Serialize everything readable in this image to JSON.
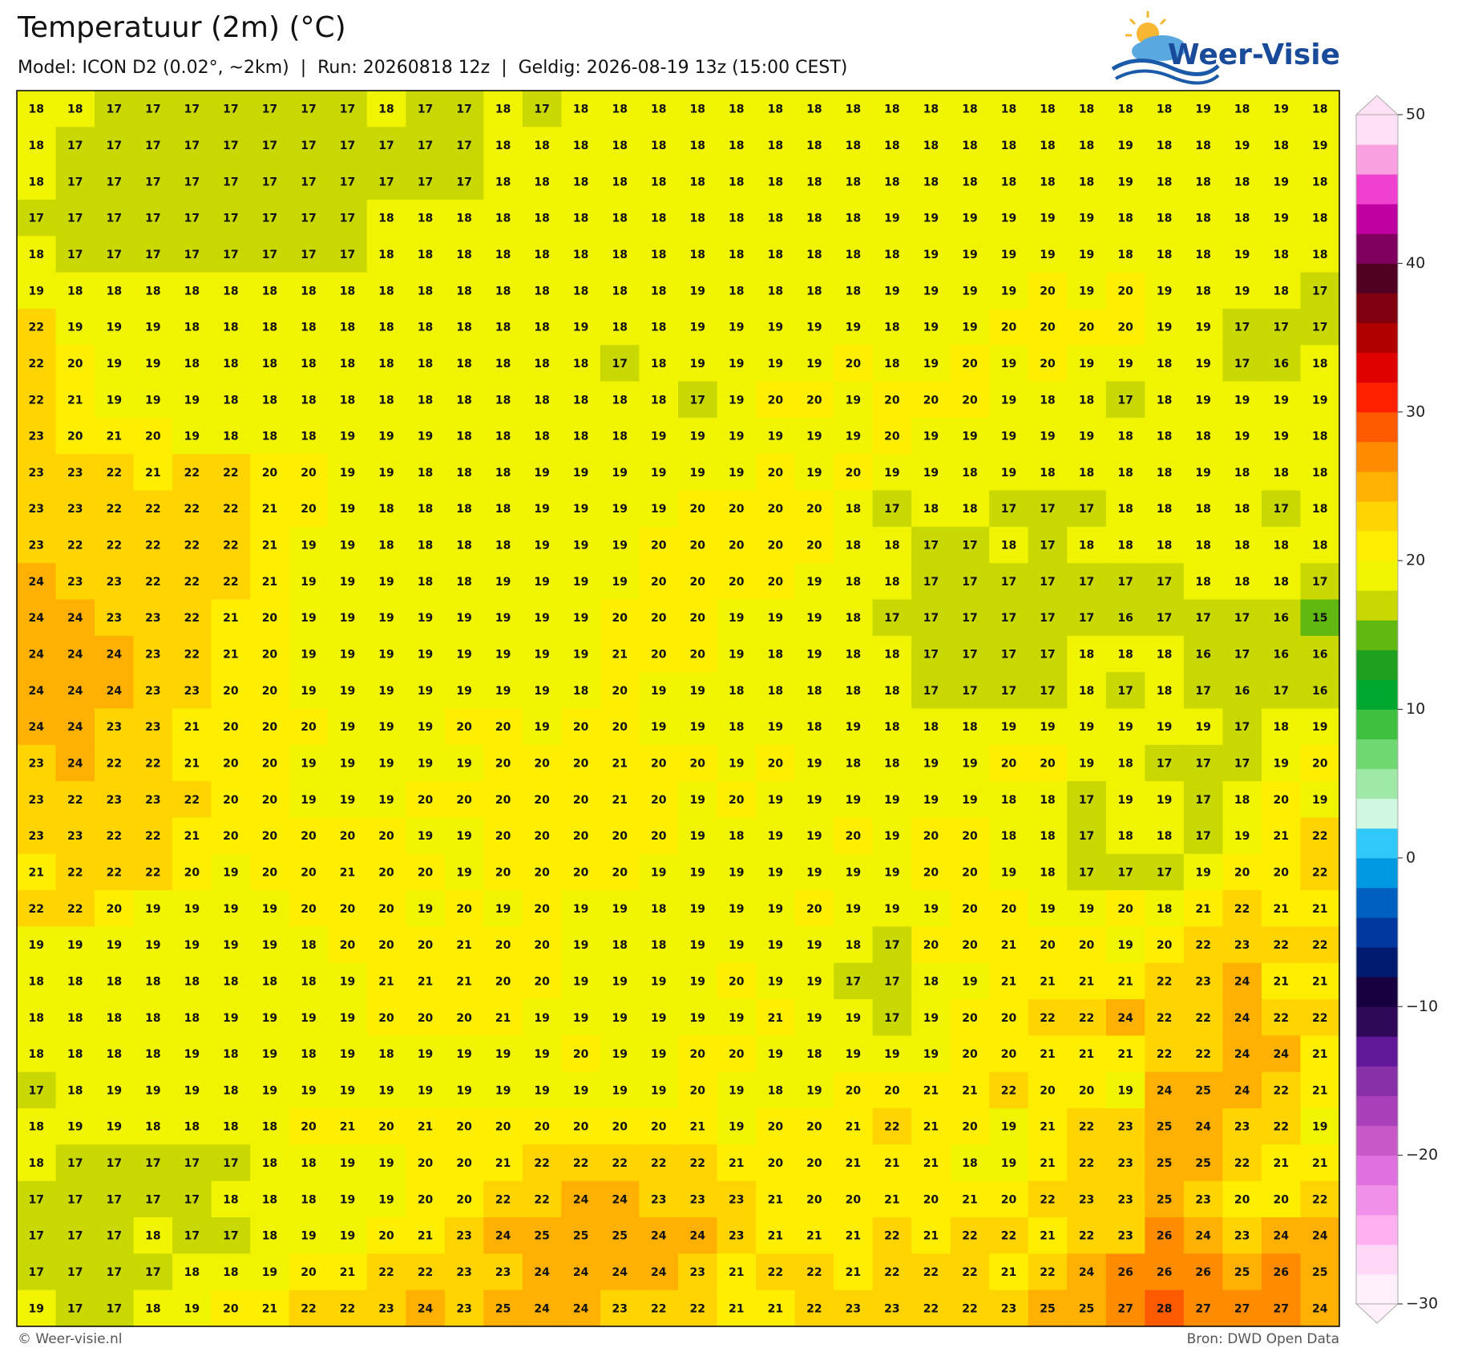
{
  "header": {
    "title": "Temperatuur (2m) (°C)",
    "subtitle": "Model: ICON D2 (0.02°, ~2km)  |  Run: 20260818 12z  |  Geldig: 2026-08-19 13z (15:00 CEST)"
  },
  "logo": "Weer-Visie",
  "map": {
    "grid": [
      [
        18,
        18,
        17,
        17,
        17,
        17,
        17,
        17,
        17,
        18,
        17,
        17,
        18,
        17,
        18,
        18,
        18,
        18,
        18,
        18,
        18,
        18,
        18,
        18,
        18,
        18,
        18,
        18,
        18,
        18,
        19,
        18,
        19,
        18
      ],
      [
        18,
        17,
        17,
        17,
        17,
        17,
        17,
        17,
        17,
        17,
        17,
        17,
        18,
        18,
        18,
        18,
        18,
        18,
        18,
        18,
        18,
        18,
        18,
        18,
        18,
        18,
        18,
        18,
        19,
        18,
        18,
        19,
        18,
        19
      ],
      [
        18,
        17,
        17,
        17,
        17,
        17,
        17,
        17,
        17,
        17,
        17,
        17,
        18,
        18,
        18,
        18,
        18,
        18,
        18,
        18,
        18,
        18,
        18,
        18,
        18,
        18,
        18,
        18,
        19,
        18,
        18,
        18,
        19,
        18
      ],
      [
        17,
        17,
        17,
        17,
        17,
        17,
        17,
        17,
        17,
        18,
        18,
        18,
        18,
        18,
        18,
        18,
        18,
        18,
        18,
        18,
        18,
        18,
        19,
        19,
        19,
        19,
        19,
        19,
        18,
        18,
        18,
        18,
        19,
        18
      ],
      [
        18,
        17,
        17,
        17,
        17,
        17,
        17,
        17,
        17,
        18,
        18,
        18,
        18,
        18,
        18,
        18,
        18,
        18,
        18,
        18,
        18,
        18,
        18,
        19,
        19,
        19,
        19,
        19,
        18,
        18,
        18,
        19,
        18,
        18
      ],
      [
        19,
        18,
        18,
        18,
        18,
        18,
        18,
        18,
        18,
        18,
        18,
        18,
        18,
        18,
        18,
        18,
        18,
        19,
        18,
        18,
        18,
        18,
        19,
        19,
        19,
        19,
        20,
        19,
        20,
        19,
        18,
        19,
        18,
        17
      ],
      [
        22,
        19,
        19,
        19,
        18,
        18,
        18,
        18,
        18,
        18,
        18,
        18,
        18,
        18,
        19,
        18,
        18,
        19,
        19,
        19,
        19,
        19,
        18,
        19,
        19,
        20,
        20,
        20,
        20,
        19,
        19,
        17,
        17,
        17
      ],
      [
        22,
        20,
        19,
        19,
        18,
        18,
        18,
        18,
        18,
        18,
        18,
        18,
        18,
        18,
        18,
        17,
        18,
        19,
        19,
        19,
        19,
        20,
        18,
        19,
        20,
        19,
        20,
        19,
        19,
        18,
        19,
        17,
        16,
        18
      ],
      [
        22,
        21,
        19,
        19,
        19,
        18,
        18,
        18,
        18,
        18,
        18,
        18,
        18,
        18,
        18,
        18,
        18,
        17,
        19,
        20,
        20,
        19,
        20,
        20,
        20,
        19,
        18,
        18,
        17,
        18,
        19,
        19,
        19,
        19
      ],
      [
        23,
        20,
        21,
        20,
        19,
        18,
        18,
        18,
        19,
        19,
        19,
        18,
        18,
        18,
        18,
        18,
        19,
        19,
        19,
        19,
        19,
        19,
        20,
        19,
        19,
        19,
        19,
        19,
        18,
        18,
        18,
        19,
        19,
        18
      ],
      [
        23,
        23,
        22,
        21,
        22,
        22,
        20,
        20,
        19,
        19,
        18,
        18,
        18,
        19,
        19,
        19,
        19,
        19,
        19,
        20,
        19,
        20,
        19,
        19,
        18,
        19,
        18,
        18,
        18,
        18,
        19,
        18,
        18,
        18
      ],
      [
        23,
        23,
        22,
        22,
        22,
        22,
        21,
        20,
        19,
        18,
        18,
        18,
        18,
        19,
        19,
        19,
        19,
        20,
        20,
        20,
        20,
        18,
        17,
        18,
        18,
        17,
        17,
        17,
        18,
        18,
        18,
        18,
        17,
        18
      ],
      [
        23,
        22,
        22,
        22,
        22,
        22,
        21,
        19,
        19,
        18,
        18,
        18,
        18,
        19,
        19,
        19,
        20,
        20,
        20,
        20,
        20,
        18,
        18,
        17,
        17,
        18,
        17,
        18,
        18,
        18,
        18,
        18,
        18,
        18
      ],
      [
        24,
        23,
        23,
        22,
        22,
        22,
        21,
        19,
        19,
        19,
        18,
        18,
        19,
        19,
        19,
        19,
        20,
        20,
        20,
        20,
        19,
        18,
        18,
        17,
        17,
        17,
        17,
        17,
        17,
        17,
        18,
        18,
        18,
        17
      ],
      [
        24,
        24,
        23,
        23,
        22,
        21,
        20,
        19,
        19,
        19,
        19,
        19,
        19,
        19,
        19,
        20,
        20,
        20,
        19,
        19,
        19,
        18,
        17,
        17,
        17,
        17,
        17,
        17,
        16,
        17,
        17,
        17,
        16,
        15
      ],
      [
        24,
        24,
        24,
        23,
        22,
        21,
        20,
        19,
        19,
        19,
        19,
        19,
        19,
        19,
        19,
        21,
        20,
        20,
        19,
        18,
        19,
        18,
        18,
        17,
        17,
        17,
        17,
        18,
        18,
        18,
        16,
        17,
        16,
        16
      ],
      [
        24,
        24,
        24,
        23,
        23,
        20,
        20,
        19,
        19,
        19,
        19,
        19,
        19,
        19,
        18,
        20,
        19,
        19,
        18,
        18,
        18,
        18,
        18,
        17,
        17,
        17,
        17,
        18,
        17,
        18,
        17,
        16,
        17,
        16
      ],
      [
        24,
        24,
        23,
        23,
        21,
        20,
        20,
        20,
        19,
        19,
        19,
        20,
        20,
        19,
        20,
        20,
        19,
        19,
        18,
        19,
        18,
        19,
        18,
        18,
        18,
        19,
        19,
        19,
        19,
        19,
        19,
        17,
        18,
        19
      ],
      [
        23,
        24,
        22,
        22,
        21,
        20,
        20,
        19,
        19,
        19,
        19,
        19,
        20,
        20,
        20,
        21,
        20,
        20,
        19,
        20,
        19,
        18,
        18,
        19,
        19,
        20,
        20,
        19,
        18,
        17,
        17,
        17,
        19,
        20
      ],
      [
        23,
        22,
        23,
        23,
        22,
        20,
        20,
        19,
        19,
        19,
        20,
        20,
        20,
        20,
        20,
        21,
        20,
        19,
        20,
        19,
        19,
        19,
        19,
        19,
        19,
        18,
        18,
        17,
        19,
        19,
        17,
        18,
        20,
        19
      ],
      [
        23,
        23,
        22,
        22,
        21,
        20,
        20,
        20,
        20,
        20,
        19,
        19,
        20,
        20,
        20,
        20,
        20,
        19,
        18,
        19,
        19,
        20,
        19,
        20,
        20,
        18,
        18,
        17,
        18,
        18,
        17,
        19,
        21,
        22
      ],
      [
        21,
        22,
        22,
        22,
        20,
        19,
        20,
        20,
        21,
        20,
        20,
        19,
        20,
        20,
        20,
        20,
        19,
        19,
        19,
        19,
        19,
        19,
        19,
        20,
        20,
        19,
        18,
        17,
        17,
        17,
        19,
        20,
        20,
        22
      ],
      [
        22,
        22,
        20,
        19,
        19,
        19,
        19,
        20,
        20,
        20,
        19,
        20,
        19,
        20,
        19,
        19,
        18,
        19,
        19,
        19,
        20,
        19,
        19,
        19,
        20,
        20,
        19,
        19,
        20,
        18,
        21,
        22,
        21,
        21
      ],
      [
        19,
        19,
        19,
        19,
        19,
        19,
        19,
        18,
        20,
        20,
        20,
        21,
        20,
        20,
        19,
        18,
        18,
        19,
        19,
        19,
        19,
        18,
        17,
        20,
        20,
        21,
        20,
        20,
        19,
        20,
        22,
        23,
        22,
        22
      ],
      [
        18,
        18,
        18,
        18,
        18,
        18,
        18,
        18,
        19,
        21,
        21,
        21,
        20,
        20,
        19,
        19,
        19,
        19,
        20,
        19,
        19,
        17,
        17,
        18,
        19,
        21,
        21,
        21,
        21,
        22,
        23,
        24,
        21,
        21
      ],
      [
        18,
        18,
        18,
        18,
        18,
        19,
        19,
        19,
        19,
        20,
        20,
        20,
        21,
        19,
        19,
        19,
        19,
        19,
        19,
        21,
        19,
        19,
        17,
        19,
        20,
        20,
        22,
        22,
        24,
        22,
        22,
        24,
        22,
        22
      ],
      [
        18,
        18,
        18,
        18,
        19,
        18,
        19,
        18,
        19,
        18,
        19,
        19,
        19,
        19,
        20,
        19,
        19,
        20,
        20,
        19,
        18,
        19,
        19,
        19,
        20,
        20,
        21,
        21,
        21,
        22,
        22,
        24,
        24,
        21
      ],
      [
        17,
        18,
        19,
        19,
        19,
        18,
        19,
        19,
        19,
        19,
        19,
        19,
        19,
        19,
        19,
        19,
        19,
        20,
        19,
        18,
        19,
        20,
        20,
        21,
        21,
        22,
        20,
        20,
        19,
        24,
        25,
        24,
        22,
        21
      ],
      [
        18,
        19,
        19,
        18,
        18,
        18,
        18,
        20,
        21,
        20,
        21,
        20,
        20,
        20,
        20,
        20,
        20,
        21,
        19,
        20,
        20,
        21,
        22,
        21,
        20,
        19,
        21,
        22,
        23,
        25,
        24,
        23,
        22,
        19
      ],
      [
        18,
        17,
        17,
        17,
        17,
        17,
        18,
        18,
        19,
        19,
        20,
        20,
        21,
        22,
        22,
        22,
        22,
        22,
        21,
        20,
        20,
        21,
        21,
        21,
        18,
        19,
        21,
        22,
        23,
        25,
        25,
        22,
        21,
        21
      ],
      [
        17,
        17,
        17,
        17,
        17,
        18,
        18,
        18,
        19,
        19,
        20,
        20,
        22,
        22,
        24,
        24,
        23,
        23,
        23,
        21,
        20,
        20,
        21,
        20,
        21,
        20,
        22,
        23,
        23,
        25,
        23,
        20,
        20,
        22
      ],
      [
        17,
        17,
        17,
        18,
        17,
        17,
        18,
        19,
        19,
        20,
        21,
        23,
        24,
        25,
        25,
        25,
        24,
        24,
        23,
        21,
        21,
        21,
        22,
        21,
        22,
        22,
        21,
        22,
        23,
        26,
        24,
        23,
        24,
        24
      ],
      [
        17,
        17,
        17,
        17,
        18,
        18,
        19,
        20,
        21,
        22,
        22,
        23,
        23,
        24,
        24,
        24,
        24,
        23,
        21,
        22,
        22,
        21,
        22,
        22,
        22,
        21,
        22,
        24,
        26,
        26,
        26,
        25,
        26,
        25
      ],
      [
        19,
        17,
        17,
        18,
        19,
        20,
        21,
        22,
        22,
        23,
        24,
        23,
        25,
        24,
        24,
        23,
        22,
        22,
        21,
        21,
        22,
        23,
        23,
        22,
        22,
        23,
        25,
        25,
        27,
        28,
        27,
        27,
        27,
        24
      ]
    ],
    "colorbar": {
      "lim": [
        -30,
        50
      ],
      "ticks": [
        {
          "value": -30,
          "label": "−30"
        },
        {
          "value": -20,
          "label": "−20"
        },
        {
          "value": -10,
          "label": "−10"
        },
        0,
        10,
        20,
        30,
        40,
        50
      ],
      "colors": [
        "#fff0fc",
        "#ffd8f8",
        "#ffb0f0",
        "#f090e8",
        "#e070e0",
        "#c858c8",
        "#a840b8",
        "#8830a8",
        "#601898",
        "#300858",
        "#180040",
        "#001a70",
        "#0038a0",
        "#0060c0",
        "#0098e0",
        "#30c8f8",
        "#d0f8e0",
        "#a0e8a8",
        "#70d870",
        "#40c040",
        "#00a830",
        "#20a020",
        "#60b810",
        "#c8d800",
        "#f0f400",
        "#ffee00",
        "#ffd400",
        "#ffb000",
        "#ff8c00",
        "#ff5a00",
        "#ff2000",
        "#e00000",
        "#b00000",
        "#800010",
        "#500020",
        "#800060",
        "#c000a0",
        "#f040d0",
        "#f8a0e0",
        "#ffe0f4"
      ]
    }
  },
  "footer": {
    "left": "© Weer-visie.nl",
    "right": "Bron: DWD Open Data"
  }
}
